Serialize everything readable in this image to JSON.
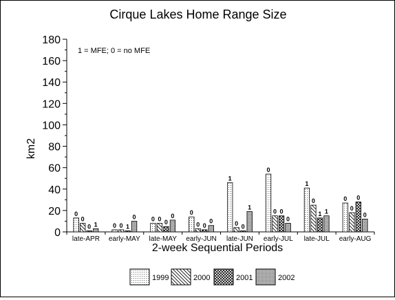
{
  "chart_data": {
    "type": "bar",
    "title": "Cirque Lakes Home Range Size",
    "xlabel": "2-week Sequential Periods",
    "ylabel": "km2",
    "ylim": [
      0,
      180
    ],
    "yticks": [
      0,
      20,
      40,
      60,
      80,
      100,
      120,
      140,
      160,
      180
    ],
    "annotation": "1 = MFE; 0 = no MFE",
    "legend_position": "bottom",
    "grid": false,
    "categories": [
      "late-APR",
      "early-MAY",
      "late-MAY",
      "early-JUN",
      "late-JUN",
      "early-JUL",
      "late-JUL",
      "early-AUG"
    ],
    "series": [
      {
        "name": "1999",
        "pattern": "dots",
        "values": [
          13,
          2,
          8,
          14,
          46,
          54,
          41,
          27
        ],
        "labels": [
          "0",
          "0",
          "0",
          "0",
          "1",
          "0",
          "1",
          "0"
        ]
      },
      {
        "name": "2000",
        "pattern": "diagonal",
        "values": [
          8,
          2,
          8,
          3,
          4,
          15,
          25,
          18
        ],
        "labels": [
          "0",
          "0",
          "0",
          "0",
          "0",
          "0",
          "0",
          "0"
        ]
      },
      {
        "name": "2001",
        "pattern": "crosshatch",
        "values": [
          1,
          1,
          5,
          2,
          1,
          15,
          13,
          28
        ],
        "labels": [
          "0",
          "1",
          "0",
          "0",
          "0",
          "0",
          "1",
          "0"
        ]
      },
      {
        "name": "2002",
        "pattern": "stipple",
        "values": [
          3,
          10,
          11,
          6,
          19,
          8,
          15,
          12
        ],
        "labels": [
          "1",
          "0",
          "0",
          "0",
          "1",
          "0",
          "1",
          "0"
        ]
      }
    ]
  }
}
